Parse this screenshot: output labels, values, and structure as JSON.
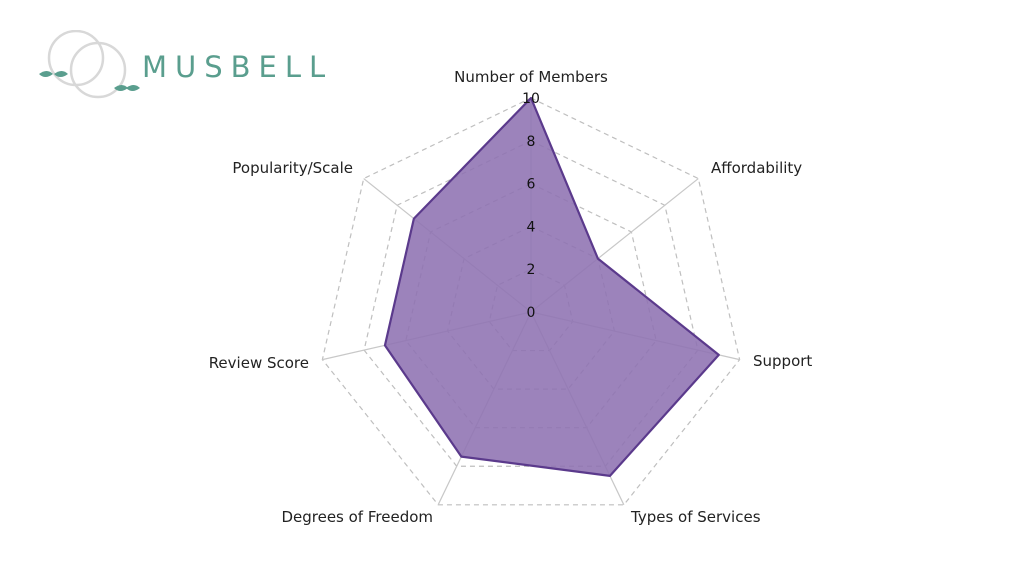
{
  "logo": {
    "text": "MUSBELL",
    "color": "#5a9e8e"
  },
  "chart_data": {
    "type": "radar",
    "axes": [
      "Number of Members",
      "Affordability",
      "Support",
      "Types of Services",
      "Degrees of Freedom",
      "Review Score",
      "Popularity/Scale"
    ],
    "series": [
      {
        "values": [
          10,
          4,
          9,
          8.5,
          7.5,
          7,
          7
        ]
      }
    ],
    "rlim": [
      0,
      10
    ],
    "ticks": [
      "0",
      "2",
      "4",
      "6",
      "8",
      "10"
    ],
    "fill_color": "#8e72b2",
    "line_color": "#5b3a8c"
  }
}
